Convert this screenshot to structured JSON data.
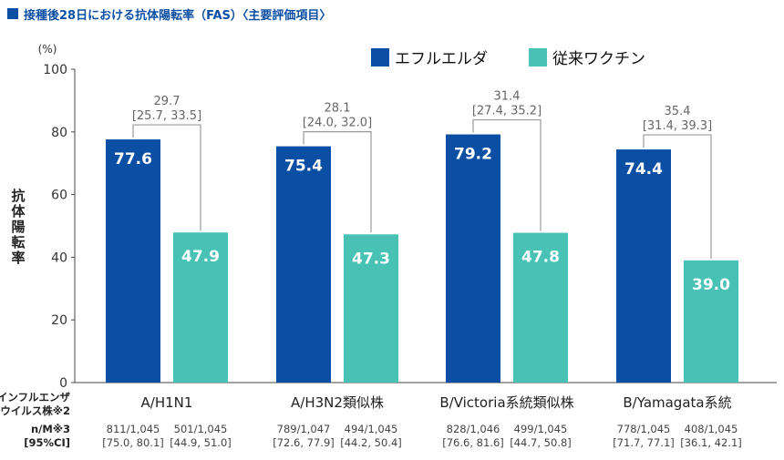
{
  "title": "接種後28日における抗体陽転率（FAS）〈主要評価項目〉",
  "colors": {
    "title": "#0a4fa3",
    "series1": "#0a4fa3",
    "series2": "#47c2b4"
  },
  "chart_data": {
    "type": "bar",
    "title": "接種後28日における抗体陽転率（FAS）〈主要評価項目〉",
    "ylabel": "抗体陽転率",
    "yunit": "(%)",
    "ylim": [
      0,
      100
    ],
    "yticks": [
      0,
      20,
      40,
      60,
      80,
      100
    ],
    "grid": false,
    "legend_position": "top-right",
    "xaxis_row_label": "インフルエンザウイルス株※2",
    "categories": [
      "A/H1N1",
      "A/H3N2類似株",
      "B/Victoria系統類似株",
      "B/Yamagata系統"
    ],
    "series": [
      {
        "name": "エフルエルダ",
        "values": [
          77.6,
          75.4,
          79.2,
          74.4
        ],
        "labels": [
          "77.6",
          "75.4",
          "79.2",
          "74.4"
        ]
      },
      {
        "name": "従来ワクチン",
        "values": [
          47.9,
          47.3,
          47.8,
          39.0
        ],
        "labels": [
          "47.9",
          "47.3",
          "47.8",
          "39.0"
        ]
      }
    ],
    "differences": [
      {
        "value": "29.7",
        "ci": "[25.7, 33.5]"
      },
      {
        "value": "28.1",
        "ci": "[24.0, 32.0]"
      },
      {
        "value": "31.4",
        "ci": "[27.4, 35.2]"
      },
      {
        "value": "35.4",
        "ci": "[31.4, 39.3]"
      }
    ],
    "footer_labels": {
      "nm": "n/M※3",
      "ci": "[95%CI]"
    },
    "footer": [
      {
        "s1_nm": "811/1,045",
        "s1_ci": "[75.0, 80.1]",
        "s2_nm": "501/1,045",
        "s2_ci": "[44.9, 51.0]"
      },
      {
        "s1_nm": "789/1,047",
        "s1_ci": "[72.6, 77.9]",
        "s2_nm": "494/1,045",
        "s2_ci": "[44.2, 50.4]"
      },
      {
        "s1_nm": "828/1,046",
        "s1_ci": "[76.6, 81.6]",
        "s2_nm": "499/1,045",
        "s2_ci": "[44.7, 50.8]"
      },
      {
        "s1_nm": "778/1,045",
        "s1_ci": "[71.7, 77.1]",
        "s2_nm": "408/1,045",
        "s2_ci": "[36.1, 42.1]"
      }
    ]
  }
}
